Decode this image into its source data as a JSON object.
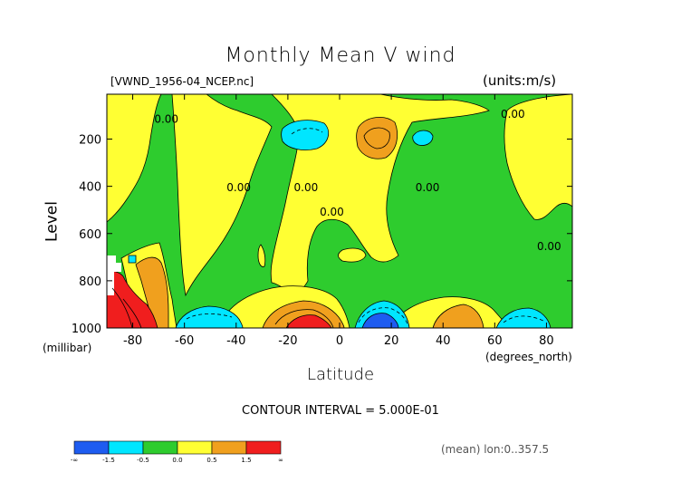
{
  "chart_data": {
    "type": "contour",
    "title": "Monthly Mean V wind",
    "file_label": "[VWND_1956-04_NCEP.nc]",
    "units_label": "(units:m/s)",
    "xlabel": "Latitude",
    "x_unit": "(degrees_north)",
    "ylabel": "Level",
    "y_unit": "(millibar)",
    "xlim": [
      -90,
      90
    ],
    "ylim": [
      1000,
      10
    ],
    "x_ticks": [
      -80,
      -60,
      -40,
      -20,
      0,
      20,
      40,
      60,
      80
    ],
    "x_tick_labels": [
      "-80",
      "-60",
      "-40",
      "-20",
      "0",
      "20",
      "40",
      "60",
      "80"
    ],
    "y_ticks": [
      200,
      400,
      600,
      800,
      1000
    ],
    "y_tick_labels": [
      "200",
      "400",
      "600",
      "800",
      "1000"
    ],
    "contour_interval": "CONTOUR INTERVAL = 5.000E-01",
    "mean_note": "(mean) lon:0..357.5",
    "contour_labels": [
      {
        "text": "0.00",
        "x": -67,
        "y": 130
      },
      {
        "text": "0.00",
        "x": 67,
        "y": 110
      },
      {
        "text": "0.00",
        "x": -39,
        "y": 420
      },
      {
        "text": "0.00",
        "x": -13,
        "y": 420
      },
      {
        "text": "0.00",
        "x": -3,
        "y": 525
      },
      {
        "text": "0.00",
        "x": 34,
        "y": 420
      },
      {
        "text": "0.00",
        "x": 81,
        "y": 670
      }
    ],
    "colorbar": {
      "colors": [
        "#1e5cf0",
        "#00e6ff",
        "#2ecc2e",
        "#ffff33",
        "#f0a01e",
        "#f01e1e"
      ],
      "labels": [
        "-∞",
        "-1.5",
        "-0.5",
        "0.0",
        "0.5",
        "1.5",
        "∞"
      ]
    }
  },
  "colors": {
    "green": "#2ecc2e",
    "yellow": "#ffff33",
    "cyan": "#00e6ff",
    "blue": "#1e5cf0",
    "orange": "#f0a01e",
    "red": "#f01e1e"
  }
}
